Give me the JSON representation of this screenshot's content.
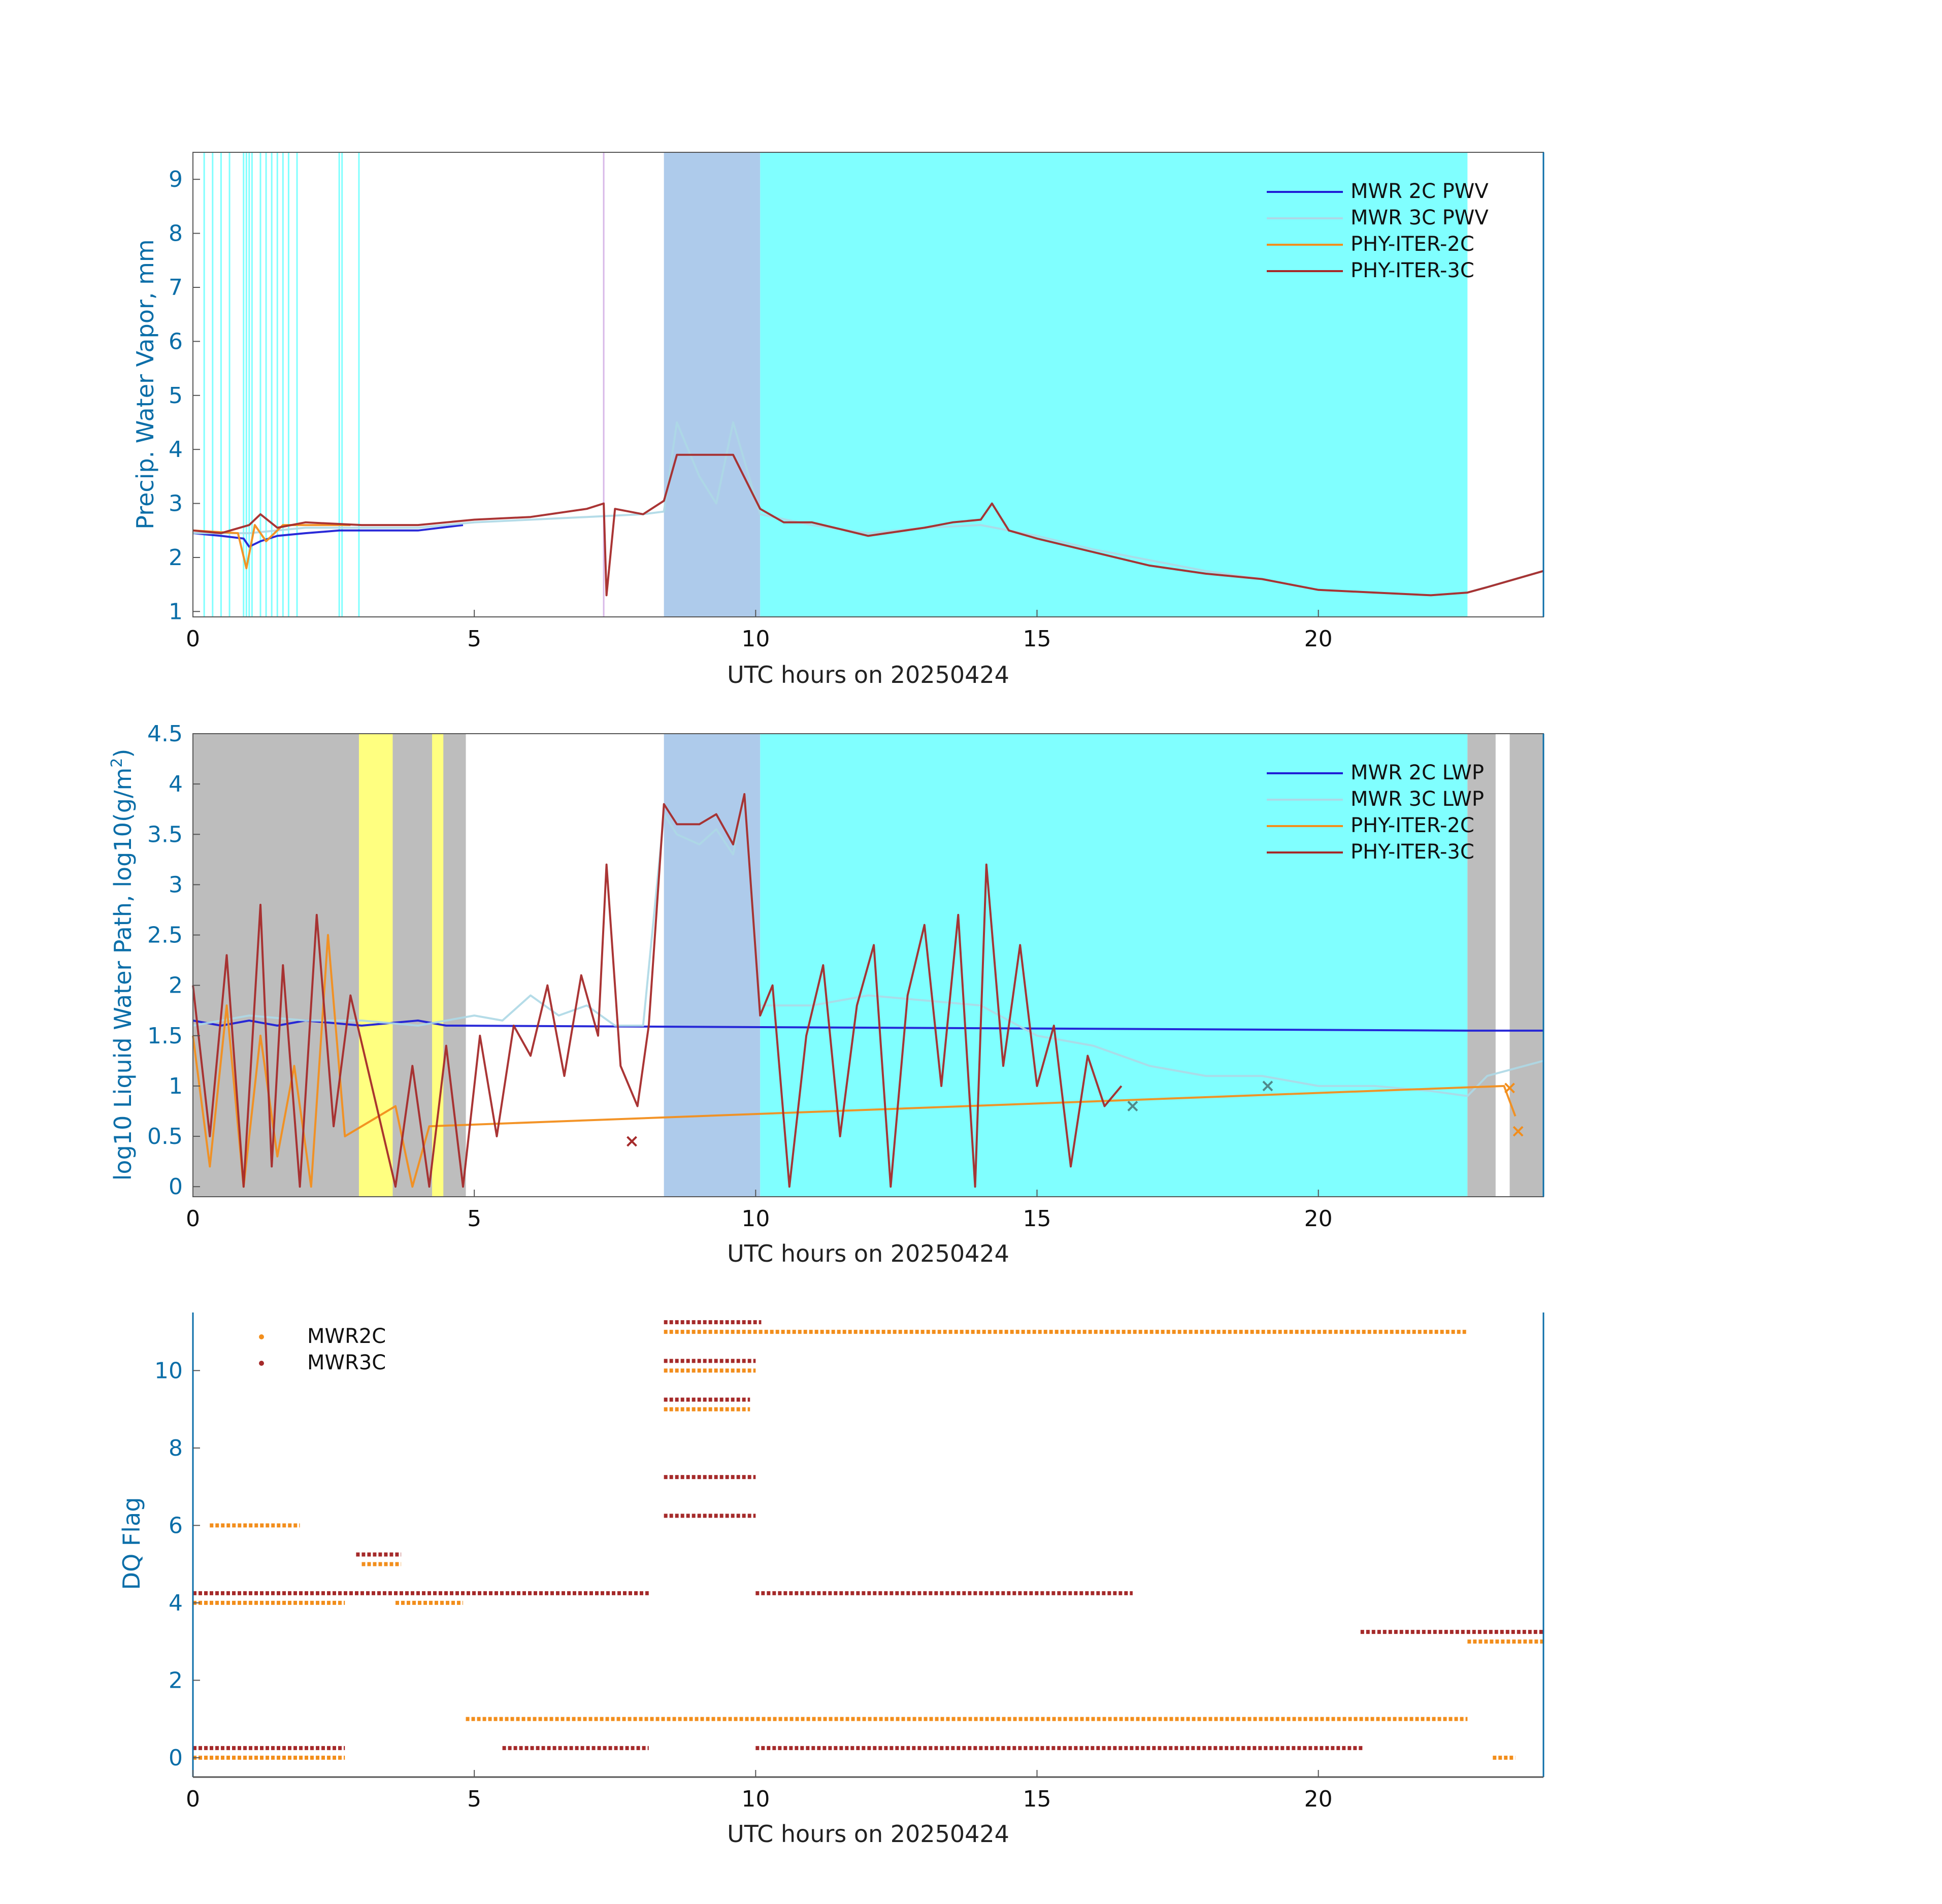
{
  "figure": {
    "date": "20250424"
  },
  "colors": {
    "mwr2c": "#1f1fd6",
    "mwr3c": "#add8e6",
    "phy2c": "#f28e1c",
    "phy3c": "#a52a2a",
    "cyan": "#80ffff",
    "bluebg": "#aecbeb",
    "yellow": "#ffff80",
    "gray": "#bdbdbd",
    "axis": "#0b6ea8"
  },
  "chart_data": [
    {
      "type": "line",
      "title": "",
      "xlabel": "UTC hours on 20250424",
      "ylabel": "Precip. Water Vapor, mm",
      "xlim": [
        0,
        24
      ],
      "ylim": [
        0.9,
        9.5
      ],
      "xticks": [
        "0",
        "5",
        "10",
        "15",
        "20"
      ],
      "yticks": [
        "1",
        "2",
        "3",
        "4",
        "5",
        "6",
        "7",
        "8",
        "9"
      ],
      "legend": [
        "MWR 2C PWV",
        "MWR 3C PWV",
        "PHY-ITER-2C",
        "PHY-ITER-3C"
      ],
      "shaded": [
        {
          "from": 8.37,
          "to": 10.08,
          "color": "bluebg"
        },
        {
          "from": 10.08,
          "to": 22.65,
          "color": "cyan"
        }
      ],
      "vlines": [
        0.2,
        0.35,
        0.5,
        0.65,
        0.9,
        0.95,
        1.0,
        1.05,
        1.2,
        1.3,
        1.4,
        1.5,
        1.6,
        1.7,
        1.85,
        2.6,
        2.65,
        2.95,
        7.3
      ],
      "series": [
        {
          "name": "MWR 2C PWV",
          "x": [
            0,
            0.5,
            0.9,
            1.0,
            1.2,
            1.5,
            2.0,
            2.6,
            3.0,
            4.0,
            4.8
          ],
          "y": [
            2.45,
            2.4,
            2.35,
            2.2,
            2.3,
            2.4,
            2.45,
            2.5,
            2.5,
            2.5,
            2.6
          ]
        },
        {
          "name": "MWR 3C PWV",
          "x": [
            0,
            1,
            2,
            3,
            4,
            5,
            6,
            7,
            8,
            8.37,
            8.6,
            9.0,
            9.3,
            9.6,
            10.08,
            11,
            12,
            13,
            14,
            15,
            16,
            17,
            18,
            19,
            20,
            21,
            22,
            22.65,
            24
          ],
          "y": [
            2.45,
            2.45,
            2.55,
            2.55,
            2.55,
            2.65,
            2.7,
            2.75,
            2.8,
            2.85,
            4.5,
            3.5,
            3.0,
            4.5,
            2.8,
            2.6,
            2.45,
            2.55,
            2.6,
            2.4,
            2.15,
            1.95,
            1.75,
            1.6,
            1.4,
            1.35,
            1.3,
            1.35,
            1.75
          ]
        },
        {
          "name": "PHY-ITER-2C",
          "x": [
            0,
            0.8,
            0.95,
            1.1,
            1.3,
            1.6,
            2.0,
            2.8
          ],
          "y": [
            2.5,
            2.45,
            1.8,
            2.6,
            2.3,
            2.6,
            2.6,
            2.6
          ]
        },
        {
          "name": "PHY-ITER-3C",
          "x": [
            0,
            0.5,
            1.0,
            1.2,
            1.5,
            2.0,
            3.0,
            4.0,
            5.0,
            6.0,
            7.0,
            7.3,
            7.35,
            7.5,
            8.0,
            8.37,
            8.6,
            9.0,
            9.6,
            10.08,
            10.5,
            11,
            12,
            13,
            13.5,
            14,
            14.2,
            14.5,
            15,
            16,
            17,
            18,
            19,
            20,
            21,
            22,
            22.65,
            23,
            24
          ],
          "y": [
            2.5,
            2.45,
            2.6,
            2.8,
            2.55,
            2.65,
            2.6,
            2.6,
            2.7,
            2.75,
            2.9,
            3.0,
            1.3,
            2.9,
            2.8,
            3.05,
            3.9,
            3.9,
            3.9,
            2.9,
            2.65,
            2.65,
            2.4,
            2.55,
            2.65,
            2.7,
            3.0,
            2.5,
            2.35,
            2.1,
            1.85,
            1.7,
            1.6,
            1.4,
            1.35,
            1.3,
            1.35,
            1.45,
            1.75
          ]
        }
      ]
    },
    {
      "type": "line",
      "title": "",
      "xlabel": "UTC hours on 20250424",
      "ylabel": "log10 Liquid Water Path, log10(g/m²)",
      "ylabel_main": "log10 Liquid Water Path, log10(g/m",
      "ylabel_sup": "2",
      "ylabel_end": ")",
      "xlim": [
        0,
        24
      ],
      "ylim": [
        -0.1,
        4.5
      ],
      "xticks": [
        "0",
        "5",
        "10",
        "15",
        "20"
      ],
      "yticks": [
        "0",
        "0.5",
        "1",
        "1.5",
        "2",
        "2.5",
        "3",
        "3.5",
        "4",
        "4.5"
      ],
      "legend": [
        "MWR 2C LWP",
        "MWR 3C LWP",
        "PHY-ITER-2C",
        "PHY-ITER-3C"
      ],
      "shaded": [
        {
          "from": 0.0,
          "to": 4.85,
          "color": "gray"
        },
        {
          "from": 2.95,
          "to": 3.55,
          "color": "yellow"
        },
        {
          "from": 4.25,
          "to": 4.45,
          "color": "yellow"
        },
        {
          "from": 8.37,
          "to": 10.08,
          "color": "bluebg"
        },
        {
          "from": 10.08,
          "to": 22.65,
          "color": "cyan"
        },
        {
          "from": 22.65,
          "to": 23.15,
          "color": "gray"
        },
        {
          "from": 23.4,
          "to": 24.0,
          "color": "gray"
        }
      ],
      "series": [
        {
          "name": "MWR 2C LWP",
          "x": [
            0,
            0.5,
            1.0,
            1.5,
            2.0,
            3.0,
            4.0,
            4.5,
            22.65,
            23.0,
            23.5,
            24
          ],
          "y": [
            1.65,
            1.6,
            1.65,
            1.6,
            1.65,
            1.6,
            1.65,
            1.6,
            1.55,
            1.55,
            1.55,
            1.55
          ]
        },
        {
          "name": "MWR 3C LWP",
          "x": [
            0,
            1,
            2,
            3,
            4,
            5,
            5.5,
            6,
            6.5,
            7,
            7.5,
            8,
            8.37,
            8.6,
            9.0,
            9.3,
            9.6,
            9.8,
            10.08,
            11,
            12,
            13,
            14,
            15,
            16,
            17,
            18,
            19,
            20,
            21,
            22,
            22.65,
            23,
            24
          ],
          "y": [
            1.6,
            1.7,
            1.65,
            1.65,
            1.6,
            1.7,
            1.65,
            1.9,
            1.7,
            1.8,
            1.6,
            1.6,
            3.7,
            3.5,
            3.4,
            3.55,
            3.3,
            3.9,
            1.8,
            1.8,
            1.9,
            1.85,
            1.8,
            1.5,
            1.4,
            1.2,
            1.1,
            1.1,
            1.0,
            1.0,
            0.95,
            0.9,
            1.1,
            1.25
          ]
        },
        {
          "name": "PHY-ITER-2C",
          "x": [
            0,
            0.3,
            0.6,
            0.9,
            1.2,
            1.5,
            1.8,
            2.1,
            2.4,
            2.7,
            3.6,
            3.9,
            4.2,
            23.3,
            23.5
          ],
          "y": [
            1.5,
            0.2,
            1.8,
            0.0,
            1.5,
            0.3,
            1.2,
            0.0,
            2.5,
            0.5,
            0.8,
            0.0,
            0.6,
            1.0,
            0.7
          ]
        },
        {
          "name": "PHY-ITER-3C",
          "x": [
            0,
            0.3,
            0.6,
            0.9,
            1.2,
            1.4,
            1.6,
            1.9,
            2.2,
            2.5,
            2.8,
            3.6,
            3.9,
            4.2,
            4.5,
            4.8,
            5.1,
            5.4,
            5.7,
            6.0,
            6.3,
            6.6,
            6.9,
            7.2,
            7.35,
            7.6,
            7.9,
            8.1,
            8.37,
            8.6,
            9.0,
            9.3,
            9.6,
            9.8,
            10.08,
            10.3,
            10.6,
            10.9,
            11.2,
            11.5,
            11.8,
            12.1,
            12.4,
            12.7,
            13.0,
            13.3,
            13.6,
            13.9,
            14.1,
            14.4,
            14.7,
            15.0,
            15.3,
            15.6,
            15.9,
            16.2,
            16.5
          ],
          "y": [
            2.0,
            0.5,
            2.3,
            0.0,
            2.8,
            0.2,
            2.2,
            0.0,
            2.7,
            0.6,
            1.9,
            0.0,
            1.2,
            0.0,
            1.4,
            0.0,
            1.5,
            0.5,
            1.6,
            1.3,
            2.0,
            1.1,
            2.1,
            1.5,
            3.2,
            1.2,
            0.8,
            1.6,
            3.8,
            3.6,
            3.6,
            3.7,
            3.4,
            3.9,
            1.7,
            2.0,
            0.0,
            1.5,
            2.2,
            0.5,
            1.8,
            2.4,
            0.0,
            1.9,
            2.6,
            1.0,
            2.7,
            0.0,
            3.2,
            1.2,
            2.4,
            1.0,
            1.6,
            0.2,
            1.3,
            0.8,
            1.0
          ]
        }
      ],
      "markers": [
        {
          "series": "PHY-ITER-3C",
          "x": 7.8,
          "y": 0.45
        },
        {
          "series": "MWR 3C LWP",
          "x": 16.7,
          "y": 0.8
        },
        {
          "series": "MWR 3C LWP",
          "x": 19.1,
          "y": 1.0
        },
        {
          "series": "PHY-ITER-2C",
          "x": 23.4,
          "y": 0.98
        },
        {
          "series": "PHY-ITER-2C",
          "x": 23.55,
          "y": 0.55
        }
      ]
    },
    {
      "type": "scatter",
      "title": "",
      "xlabel": "UTC hours on 20250424",
      "ylabel": "DQ Flag",
      "xlim": [
        0,
        24
      ],
      "ylim": [
        -0.5,
        11.5
      ],
      "xticks": [
        "0",
        "5",
        "10",
        "15",
        "20"
      ],
      "yticks": [
        "0",
        "2",
        "4",
        "6",
        "8",
        "10"
      ],
      "legend": [
        "MWR2C",
        "MWR3C"
      ],
      "series": [
        {
          "name": "MWR2C",
          "segments": [
            {
              "y": 0.0,
              "x": [
                0.0,
                2.7
              ]
            },
            {
              "y": 4.0,
              "x": [
                0.0,
                2.7
              ]
            },
            {
              "y": 6.0,
              "x": [
                0.3,
                1.9
              ]
            },
            {
              "y": 5.0,
              "x": [
                3.0,
                3.7
              ]
            },
            {
              "y": 4.0,
              "x": [
                3.6,
                4.8
              ]
            },
            {
              "y": 1.0,
              "x": [
                4.85,
                22.65
              ]
            },
            {
              "y": 11.0,
              "x": [
                8.37,
                22.65
              ]
            },
            {
              "y": 10.0,
              "x": [
                8.37,
                10.0
              ]
            },
            {
              "y": 9.0,
              "x": [
                8.37,
                9.9
              ]
            },
            {
              "y": 3.0,
              "x": [
                22.65,
                24.0
              ]
            },
            {
              "y": 0.0,
              "x": [
                23.1,
                23.5
              ]
            }
          ]
        },
        {
          "name": "MWR3C",
          "segments": [
            {
              "y": 0.25,
              "x": [
                0.0,
                2.7
              ]
            },
            {
              "y": 4.25,
              "x": [
                0.0,
                8.1
              ]
            },
            {
              "y": 5.25,
              "x": [
                2.9,
                3.7
              ]
            },
            {
              "y": 11.25,
              "x": [
                8.37,
                10.1
              ]
            },
            {
              "y": 10.25,
              "x": [
                8.37,
                10.0
              ]
            },
            {
              "y": 9.25,
              "x": [
                8.37,
                9.9
              ]
            },
            {
              "y": 7.25,
              "x": [
                8.37,
                10.0
              ]
            },
            {
              "y": 6.25,
              "x": [
                8.37,
                10.0
              ]
            },
            {
              "y": 4.25,
              "x": [
                10.0,
                16.7
              ]
            },
            {
              "y": 0.25,
              "x": [
                10.0,
                20.8
              ]
            },
            {
              "y": 3.25,
              "x": [
                20.75,
                24.0
              ]
            },
            {
              "y": 0.25,
              "x": [
                5.5,
                8.1
              ]
            }
          ]
        }
      ]
    }
  ]
}
